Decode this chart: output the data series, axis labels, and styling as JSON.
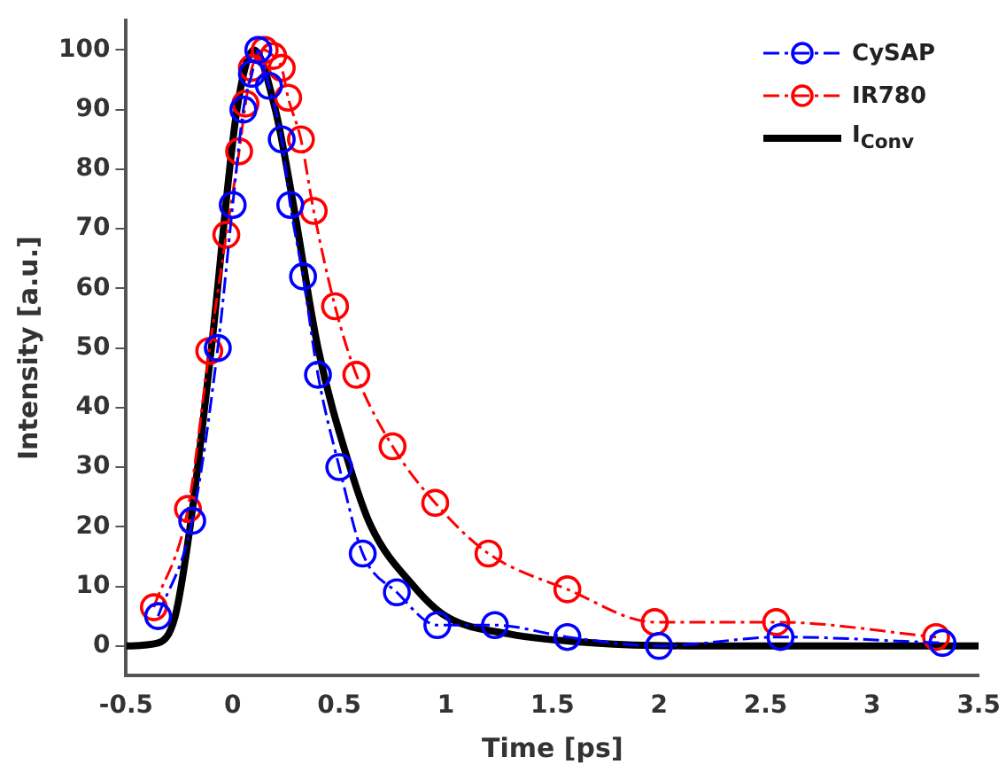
{
  "chart_data": {
    "type": "line",
    "xlabel": "Time [ps]",
    "ylabel": "Intensity [a.u.]",
    "xlim": [
      -0.5,
      3.5
    ],
    "xticks": [
      -0.5,
      0,
      0.5,
      1,
      1.5,
      2,
      2.5,
      3,
      3.5
    ],
    "ylim": [
      -5,
      105
    ],
    "yticks": [
      0,
      10,
      20,
      30,
      40,
      50,
      60,
      70,
      80,
      90,
      100
    ],
    "grid": false,
    "legend": "top right",
    "series": [
      {
        "name": "CySAP",
        "color": "#0000ff",
        "marker": "circle",
        "line_style": "dashed",
        "x": [
          -0.35,
          -0.19,
          -0.07,
          0.0,
          0.05,
          0.09,
          0.12,
          0.17,
          0.23,
          0.27,
          0.33,
          0.4,
          0.5,
          0.61,
          0.77,
          0.96,
          1.23,
          1.57,
          2.0,
          2.57,
          3.33
        ],
        "values": [
          5,
          21,
          50,
          74,
          90,
          96,
          100,
          94,
          85,
          74,
          62,
          45.5,
          30,
          15.5,
          9,
          3.5,
          3.5,
          1.5,
          0,
          1.5,
          0.5
        ]
      },
      {
        "name": "IR780",
        "color": "#ff0000",
        "marker": "circle",
        "line_style": "dashed",
        "x": [
          -0.37,
          -0.21,
          -0.11,
          -0.03,
          0.03,
          0.06,
          0.09,
          0.15,
          0.19,
          0.23,
          0.26,
          0.32,
          0.38,
          0.48,
          0.58,
          0.75,
          0.95,
          1.2,
          1.57,
          1.98,
          2.55,
          3.3
        ],
        "values": [
          6.5,
          23,
          49.5,
          69,
          83,
          91,
          97,
          100,
          99,
          97,
          92,
          85,
          73,
          57,
          45.5,
          33.5,
          24,
          15.5,
          9.5,
          4,
          4,
          1.5
        ]
      },
      {
        "name": "I$_{Conv}$",
        "color": "#000000",
        "marker": "none",
        "line_style": "solid",
        "x": [
          -0.5,
          -0.35,
          -0.27,
          -0.2,
          -0.1,
          0.02,
          0.1,
          0.2,
          0.28,
          0.4,
          0.55,
          0.65,
          0.85,
          1.0,
          1.3,
          1.7,
          2.2,
          3.5
        ],
        "values": [
          0,
          0.5,
          5,
          20,
          50,
          90,
          100,
          90,
          75,
          50,
          30,
          20,
          10,
          5,
          2,
          0.5,
          0,
          0
        ]
      }
    ]
  }
}
